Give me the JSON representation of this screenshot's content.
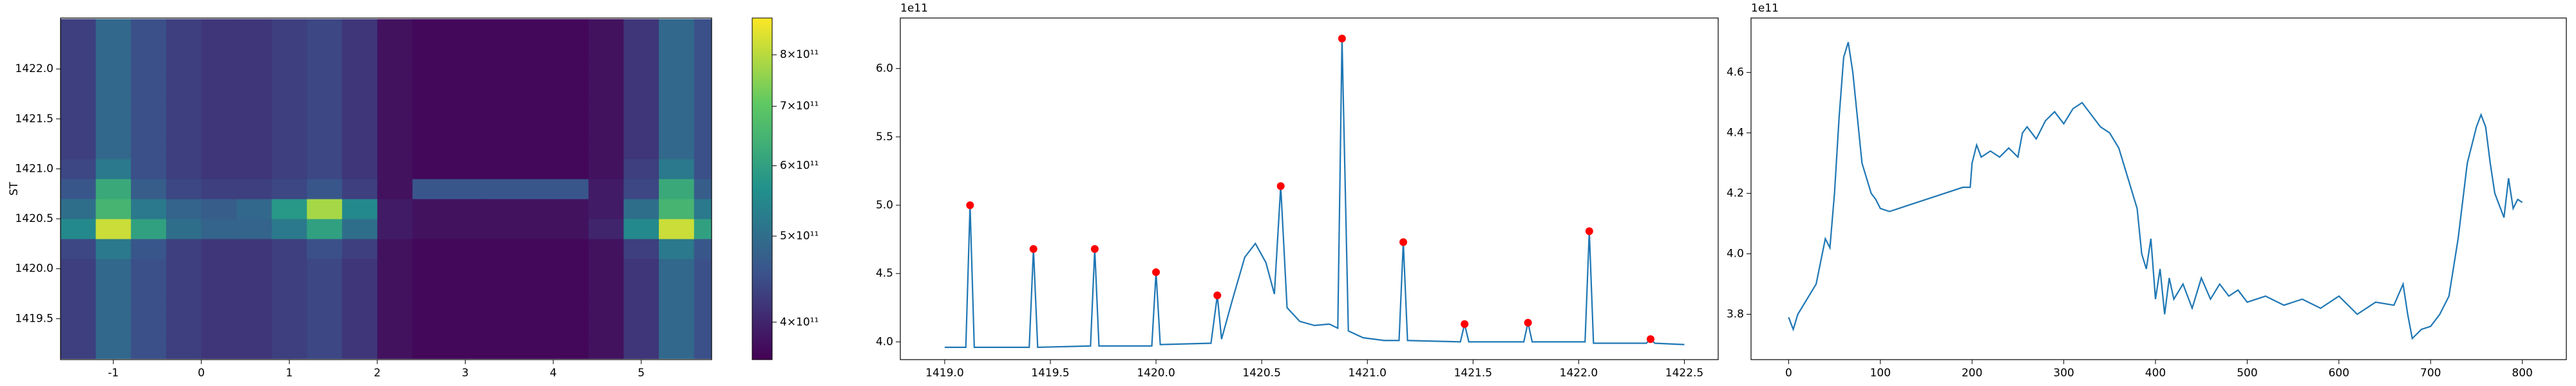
{
  "chart_data": [
    {
      "type": "heatmap",
      "ylabel": "ST",
      "x": [
        -1.4,
        -1.0,
        -0.6,
        -0.2,
        0.2,
        0.6,
        1.0,
        1.4,
        1.8,
        2.2,
        2.6,
        3.0,
        3.4,
        3.8,
        4.2,
        4.6,
        5.0,
        5.4,
        5.8
      ],
      "y": [
        1419.2,
        1419.4,
        1419.6,
        1419.8,
        1420.0,
        1420.2,
        1420.4,
        1420.6,
        1420.8,
        1421.0,
        1421.2,
        1421.4,
        1421.6,
        1421.8,
        1422.0,
        1422.2,
        1422.4
      ],
      "values": [
        [
          430000000000.0,
          490000000000.0,
          450000000000.0,
          430000000000.0,
          420000000000.0,
          420000000000.0,
          430000000000.0,
          440000000000.0,
          420000000000.0,
          380000000000.0,
          370000000000.0,
          370000000000.0,
          370000000000.0,
          370000000000.0,
          370000000000.0,
          380000000000.0,
          420000000000.0,
          490000000000.0,
          450000000000.0
        ],
        [
          430000000000.0,
          490000000000.0,
          450000000000.0,
          430000000000.0,
          420000000000.0,
          420000000000.0,
          430000000000.0,
          440000000000.0,
          420000000000.0,
          380000000000.0,
          370000000000.0,
          370000000000.0,
          370000000000.0,
          370000000000.0,
          370000000000.0,
          380000000000.0,
          420000000000.0,
          490000000000.0,
          450000000000.0
        ],
        [
          430000000000.0,
          490000000000.0,
          450000000000.0,
          430000000000.0,
          420000000000.0,
          420000000000.0,
          430000000000.0,
          440000000000.0,
          420000000000.0,
          380000000000.0,
          370000000000.0,
          370000000000.0,
          370000000000.0,
          370000000000.0,
          370000000000.0,
          380000000000.0,
          420000000000.0,
          490000000000.0,
          450000000000.0
        ],
        [
          430000000000.0,
          490000000000.0,
          450000000000.0,
          430000000000.0,
          420000000000.0,
          420000000000.0,
          430000000000.0,
          440000000000.0,
          420000000000.0,
          380000000000.0,
          370000000000.0,
          370000000000.0,
          370000000000.0,
          370000000000.0,
          370000000000.0,
          380000000000.0,
          420000000000.0,
          490000000000.0,
          450000000000.0
        ],
        [
          430000000000.0,
          490000000000.0,
          450000000000.0,
          430000000000.0,
          420000000000.0,
          420000000000.0,
          430000000000.0,
          440000000000.0,
          420000000000.0,
          380000000000.0,
          370000000000.0,
          370000000000.0,
          370000000000.0,
          370000000000.0,
          370000000000.0,
          380000000000.0,
          420000000000.0,
          490000000000.0,
          450000000000.0
        ],
        [
          440000000000.0,
          520000000000.0,
          460000000000.0,
          430000000000.0,
          420000000000.0,
          420000000000.0,
          430000000000.0,
          450000000000.0,
          430000000000.0,
          380000000000.0,
          370000000000.0,
          370000000000.0,
          370000000000.0,
          370000000000.0,
          370000000000.0,
          380000000000.0,
          430000000000.0,
          520000000000.0,
          460000000000.0
        ],
        [
          550000000000.0,
          820000000000.0,
          600000000000.0,
          500000000000.0,
          480000000000.0,
          480000000000.0,
          520000000000.0,
          600000000000.0,
          500000000000.0,
          390000000000.0,
          380000000000.0,
          380000000000.0,
          380000000000.0,
          380000000000.0,
          380000000000.0,
          400000000000.0,
          550000000000.0,
          820000000000.0,
          600000000000.0
        ],
        [
          500000000000.0,
          650000000000.0,
          520000000000.0,
          480000000000.0,
          470000000000.0,
          490000000000.0,
          580000000000.0,
          780000000000.0,
          550000000000.0,
          390000000000.0,
          380000000000.0,
          380000000000.0,
          380000000000.0,
          380000000000.0,
          380000000000.0,
          390000000000.0,
          500000000000.0,
          650000000000.0,
          520000000000.0
        ],
        [
          460000000000.0,
          620000000000.0,
          470000000000.0,
          440000000000.0,
          430000000000.0,
          430000000000.0,
          440000000000.0,
          460000000000.0,
          430000000000.0,
          380000000000.0,
          460000000000.0,
          460000000000.0,
          460000000000.0,
          460000000000.0,
          460000000000.0,
          390000000000.0,
          440000000000.0,
          620000000000.0,
          470000000000.0
        ],
        [
          440000000000.0,
          520000000000.0,
          450000000000.0,
          430000000000.0,
          420000000000.0,
          420000000000.0,
          430000000000.0,
          440000000000.0,
          420000000000.0,
          380000000000.0,
          370000000000.0,
          370000000000.0,
          370000000000.0,
          370000000000.0,
          370000000000.0,
          380000000000.0,
          430000000000.0,
          520000000000.0,
          450000000000.0
        ],
        [
          430000000000.0,
          490000000000.0,
          450000000000.0,
          430000000000.0,
          420000000000.0,
          420000000000.0,
          430000000000.0,
          440000000000.0,
          420000000000.0,
          380000000000.0,
          370000000000.0,
          370000000000.0,
          370000000000.0,
          370000000000.0,
          370000000000.0,
          380000000000.0,
          420000000000.0,
          490000000000.0,
          450000000000.0
        ],
        [
          430000000000.0,
          490000000000.0,
          450000000000.0,
          430000000000.0,
          420000000000.0,
          420000000000.0,
          430000000000.0,
          440000000000.0,
          420000000000.0,
          380000000000.0,
          370000000000.0,
          370000000000.0,
          370000000000.0,
          370000000000.0,
          370000000000.0,
          380000000000.0,
          420000000000.0,
          490000000000.0,
          450000000000.0
        ],
        [
          430000000000.0,
          490000000000.0,
          450000000000.0,
          430000000000.0,
          420000000000.0,
          420000000000.0,
          430000000000.0,
          440000000000.0,
          420000000000.0,
          380000000000.0,
          370000000000.0,
          370000000000.0,
          370000000000.0,
          370000000000.0,
          370000000000.0,
          380000000000.0,
          420000000000.0,
          490000000000.0,
          450000000000.0
        ],
        [
          430000000000.0,
          490000000000.0,
          450000000000.0,
          430000000000.0,
          420000000000.0,
          420000000000.0,
          430000000000.0,
          440000000000.0,
          420000000000.0,
          380000000000.0,
          370000000000.0,
          370000000000.0,
          370000000000.0,
          370000000000.0,
          370000000000.0,
          380000000000.0,
          420000000000.0,
          490000000000.0,
          450000000000.0
        ],
        [
          430000000000.0,
          490000000000.0,
          450000000000.0,
          430000000000.0,
          420000000000.0,
          420000000000.0,
          430000000000.0,
          440000000000.0,
          420000000000.0,
          380000000000.0,
          370000000000.0,
          370000000000.0,
          370000000000.0,
          370000000000.0,
          370000000000.0,
          380000000000.0,
          420000000000.0,
          490000000000.0,
          450000000000.0
        ],
        [
          430000000000.0,
          490000000000.0,
          450000000000.0,
          430000000000.0,
          420000000000.0,
          420000000000.0,
          430000000000.0,
          440000000000.0,
          420000000000.0,
          380000000000.0,
          370000000000.0,
          370000000000.0,
          370000000000.0,
          370000000000.0,
          370000000000.0,
          380000000000.0,
          420000000000.0,
          490000000000.0,
          450000000000.0
        ],
        [
          430000000000.0,
          490000000000.0,
          450000000000.0,
          430000000000.0,
          420000000000.0,
          420000000000.0,
          430000000000.0,
          440000000000.0,
          420000000000.0,
          380000000000.0,
          370000000000.0,
          370000000000.0,
          370000000000.0,
          370000000000.0,
          370000000000.0,
          380000000000.0,
          420000000000.0,
          490000000000.0,
          450000000000.0
        ]
      ],
      "xlim": [
        -1.6,
        5.8
      ],
      "ylim": [
        1419.09,
        1422.51
      ],
      "xticks": [
        -1,
        0,
        1,
        2,
        3,
        4,
        5
      ],
      "yticks": [
        1419.5,
        {
          "value": 1420,
          "label": "1420.0"
        },
        1420.5,
        {
          "value": 1421,
          "label": "1421.0"
        },
        1421.5,
        {
          "value": 1422,
          "label": "1422.0"
        }
      ],
      "colorbar": {
        "colormap": "viridis",
        "scale": "log",
        "lim": [
          363000000000.0,
          880000000000.0
        ],
        "ticks": [
          {
            "value": 400000000000.0,
            "label": "4×10¹¹"
          },
          {
            "value": 500000000000.0,
            "label": "5×10¹¹"
          },
          {
            "value": 600000000000.0,
            "label": "6×10¹¹"
          },
          {
            "value": 700000000000.0,
            "label": "7×10¹¹"
          },
          {
            "value": 800000000000.0,
            "label": "8×10¹¹"
          }
        ]
      }
    },
    {
      "type": "line",
      "offset_label": "1e11",
      "color": "#1f77b4",
      "x": [
        1419.0,
        1419.1,
        1419.12,
        1419.14,
        1419.4,
        1419.42,
        1419.44,
        1419.69,
        1419.71,
        1419.73,
        1419.98,
        1420.0,
        1420.02,
        1420.26,
        1420.29,
        1420.31,
        1420.36,
        1420.42,
        1420.47,
        1420.52,
        1420.56,
        1420.59,
        1420.62,
        1420.68,
        1420.75,
        1420.82,
        1420.86,
        1420.88,
        1420.91,
        1420.98,
        1421.08,
        1421.15,
        1421.17,
        1421.19,
        1421.44,
        1421.46,
        1421.48,
        1421.74,
        1421.76,
        1421.78,
        1422.03,
        1422.05,
        1422.07,
        1422.32,
        1422.34,
        1422.36,
        1422.5
      ],
      "values": [
        3.96,
        3.96,
        5.0,
        3.96,
        3.96,
        4.68,
        3.96,
        3.97,
        4.68,
        3.97,
        3.97,
        4.51,
        3.98,
        3.99,
        4.34,
        4.02,
        4.3,
        4.62,
        4.72,
        4.58,
        4.35,
        5.14,
        4.25,
        4.15,
        4.12,
        4.13,
        4.1,
        6.22,
        4.08,
        4.03,
        4.01,
        4.01,
        4.73,
        4.01,
        4.0,
        4.13,
        4.0,
        4.0,
        4.14,
        4.0,
        4.0,
        4.81,
        3.99,
        3.99,
        4.02,
        3.99,
        3.98
      ],
      "peaks": {
        "color": "#ff0000",
        "x": [
          1419.12,
          1419.42,
          1419.71,
          1420.0,
          1420.29,
          1420.59,
          1420.88,
          1421.17,
          1421.46,
          1421.76,
          1422.05,
          1422.34
        ],
        "values": [
          5.0,
          4.68,
          4.68,
          4.51,
          4.34,
          5.14,
          6.22,
          4.73,
          4.13,
          4.14,
          4.81,
          4.02
        ]
      },
      "xlim": [
        1418.79,
        1422.66
      ],
      "ylim": [
        3.87,
        6.37
      ],
      "xticks": [
        {
          "value": 1419,
          "label": "1419.0"
        },
        1419.5,
        {
          "value": 1420,
          "label": "1420.0"
        },
        1420.5,
        {
          "value": 1421,
          "label": "1421.0"
        },
        1421.5,
        {
          "value": 1422,
          "label": "1422.0"
        },
        1422.5
      ],
      "yticks": [
        {
          "value": 4,
          "label": "4.0"
        },
        4.5,
        {
          "value": 5,
          "label": "5.0"
        },
        5.5,
        {
          "value": 6,
          "label": "6.0"
        }
      ]
    },
    {
      "type": "line",
      "offset_label": "1e11",
      "color": "#1f77b4",
      "x": [
        0,
        5,
        10,
        20,
        30,
        40,
        45,
        50,
        55,
        60,
        65,
        70,
        75,
        80,
        90,
        95,
        100,
        110,
        130,
        150,
        170,
        190,
        198,
        200,
        205,
        210,
        220,
        230,
        240,
        250,
        255,
        260,
        270,
        280,
        290,
        300,
        310,
        320,
        330,
        340,
        350,
        360,
        370,
        380,
        385,
        390,
        395,
        400,
        405,
        410,
        415,
        420,
        430,
        440,
        450,
        460,
        470,
        480,
        490,
        500,
        520,
        540,
        560,
        580,
        600,
        620,
        640,
        660,
        670,
        675,
        680,
        690,
        700,
        710,
        720,
        730,
        740,
        750,
        755,
        760,
        765,
        770,
        780,
        785,
        790,
        795,
        800
      ],
      "values": [
        3.79,
        3.75,
        3.8,
        3.85,
        3.9,
        4.05,
        4.02,
        4.2,
        4.45,
        4.65,
        4.7,
        4.6,
        4.45,
        4.3,
        4.2,
        4.18,
        4.15,
        4.14,
        4.16,
        4.18,
        4.2,
        4.22,
        4.22,
        4.3,
        4.36,
        4.32,
        4.34,
        4.32,
        4.35,
        4.32,
        4.4,
        4.42,
        4.38,
        4.44,
        4.47,
        4.43,
        4.48,
        4.5,
        4.46,
        4.42,
        4.4,
        4.35,
        4.25,
        4.15,
        4.0,
        3.95,
        4.05,
        3.85,
        3.95,
        3.8,
        3.92,
        3.85,
        3.9,
        3.82,
        3.92,
        3.85,
        3.9,
        3.86,
        3.88,
        3.84,
        3.86,
        3.83,
        3.85,
        3.82,
        3.86,
        3.8,
        3.84,
        3.83,
        3.9,
        3.8,
        3.72,
        3.75,
        3.76,
        3.8,
        3.86,
        4.05,
        4.3,
        4.42,
        4.46,
        4.42,
        4.3,
        4.2,
        4.12,
        4.25,
        4.15,
        4.18,
        4.17
      ],
      "xlim": [
        -41,
        848
      ],
      "ylim": [
        3.65,
        4.78
      ],
      "xticks": [
        0,
        100,
        200,
        300,
        400,
        500,
        600,
        700,
        800
      ],
      "yticks": [
        3.8,
        {
          "value": 4,
          "label": "4.0"
        },
        4.2,
        4.4,
        4.6
      ]
    }
  ]
}
